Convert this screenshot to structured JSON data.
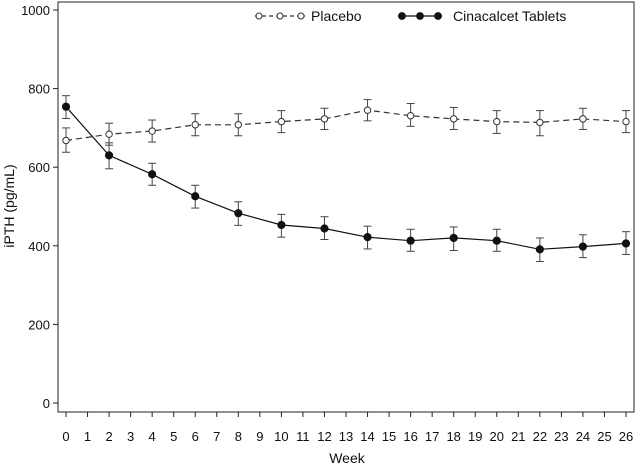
{
  "chart_data": {
    "type": "line",
    "xlabel": "Week",
    "ylabel": "iPTH (pg/mL)",
    "x_ticks": [
      0,
      1,
      2,
      3,
      4,
      5,
      6,
      7,
      8,
      9,
      10,
      11,
      12,
      13,
      14,
      15,
      16,
      17,
      18,
      19,
      20,
      21,
      22,
      23,
      24,
      25,
      26
    ],
    "y_ticks": [
      0,
      200,
      400,
      600,
      800,
      1000
    ],
    "xlim": [
      0,
      26
    ],
    "ylim": [
      0,
      1000
    ],
    "grid": false,
    "legend_position": "top",
    "series": [
      {
        "name": "Placebo",
        "style": "dashed",
        "marker": "open-circle",
        "color": "#333333",
        "x": [
          0,
          2,
          4,
          6,
          8,
          10,
          12,
          14,
          16,
          18,
          20,
          22,
          24,
          26
        ],
        "y": [
          668,
          684,
          692,
          708,
          708,
          716,
          723,
          745,
          731,
          723,
          716,
          714,
          723,
          716
        ],
        "error_low": [
          638,
          656,
          664,
          680,
          680,
          688,
          696,
          718,
          704,
          696,
          686,
          680,
          696,
          688
        ],
        "error_high": [
          700,
          712,
          720,
          736,
          736,
          744,
          750,
          772,
          762,
          752,
          744,
          744,
          750,
          744
        ]
      },
      {
        "name": "Cinacalcet Tablets",
        "style": "solid",
        "marker": "filled-circle",
        "color": "#111111",
        "x": [
          0,
          2,
          4,
          6,
          8,
          10,
          12,
          14,
          16,
          18,
          20,
          22,
          24,
          26
        ],
        "y": [
          754,
          630,
          582,
          526,
          483,
          453,
          444,
          422,
          413,
          420,
          413,
          391,
          398,
          406
        ],
        "error_low": [
          724,
          596,
          554,
          496,
          452,
          422,
          416,
          392,
          386,
          388,
          386,
          360,
          370,
          378
        ],
        "error_high": [
          782,
          662,
          610,
          554,
          512,
          480,
          474,
          450,
          442,
          448,
          442,
          420,
          428,
          436
        ]
      }
    ]
  }
}
